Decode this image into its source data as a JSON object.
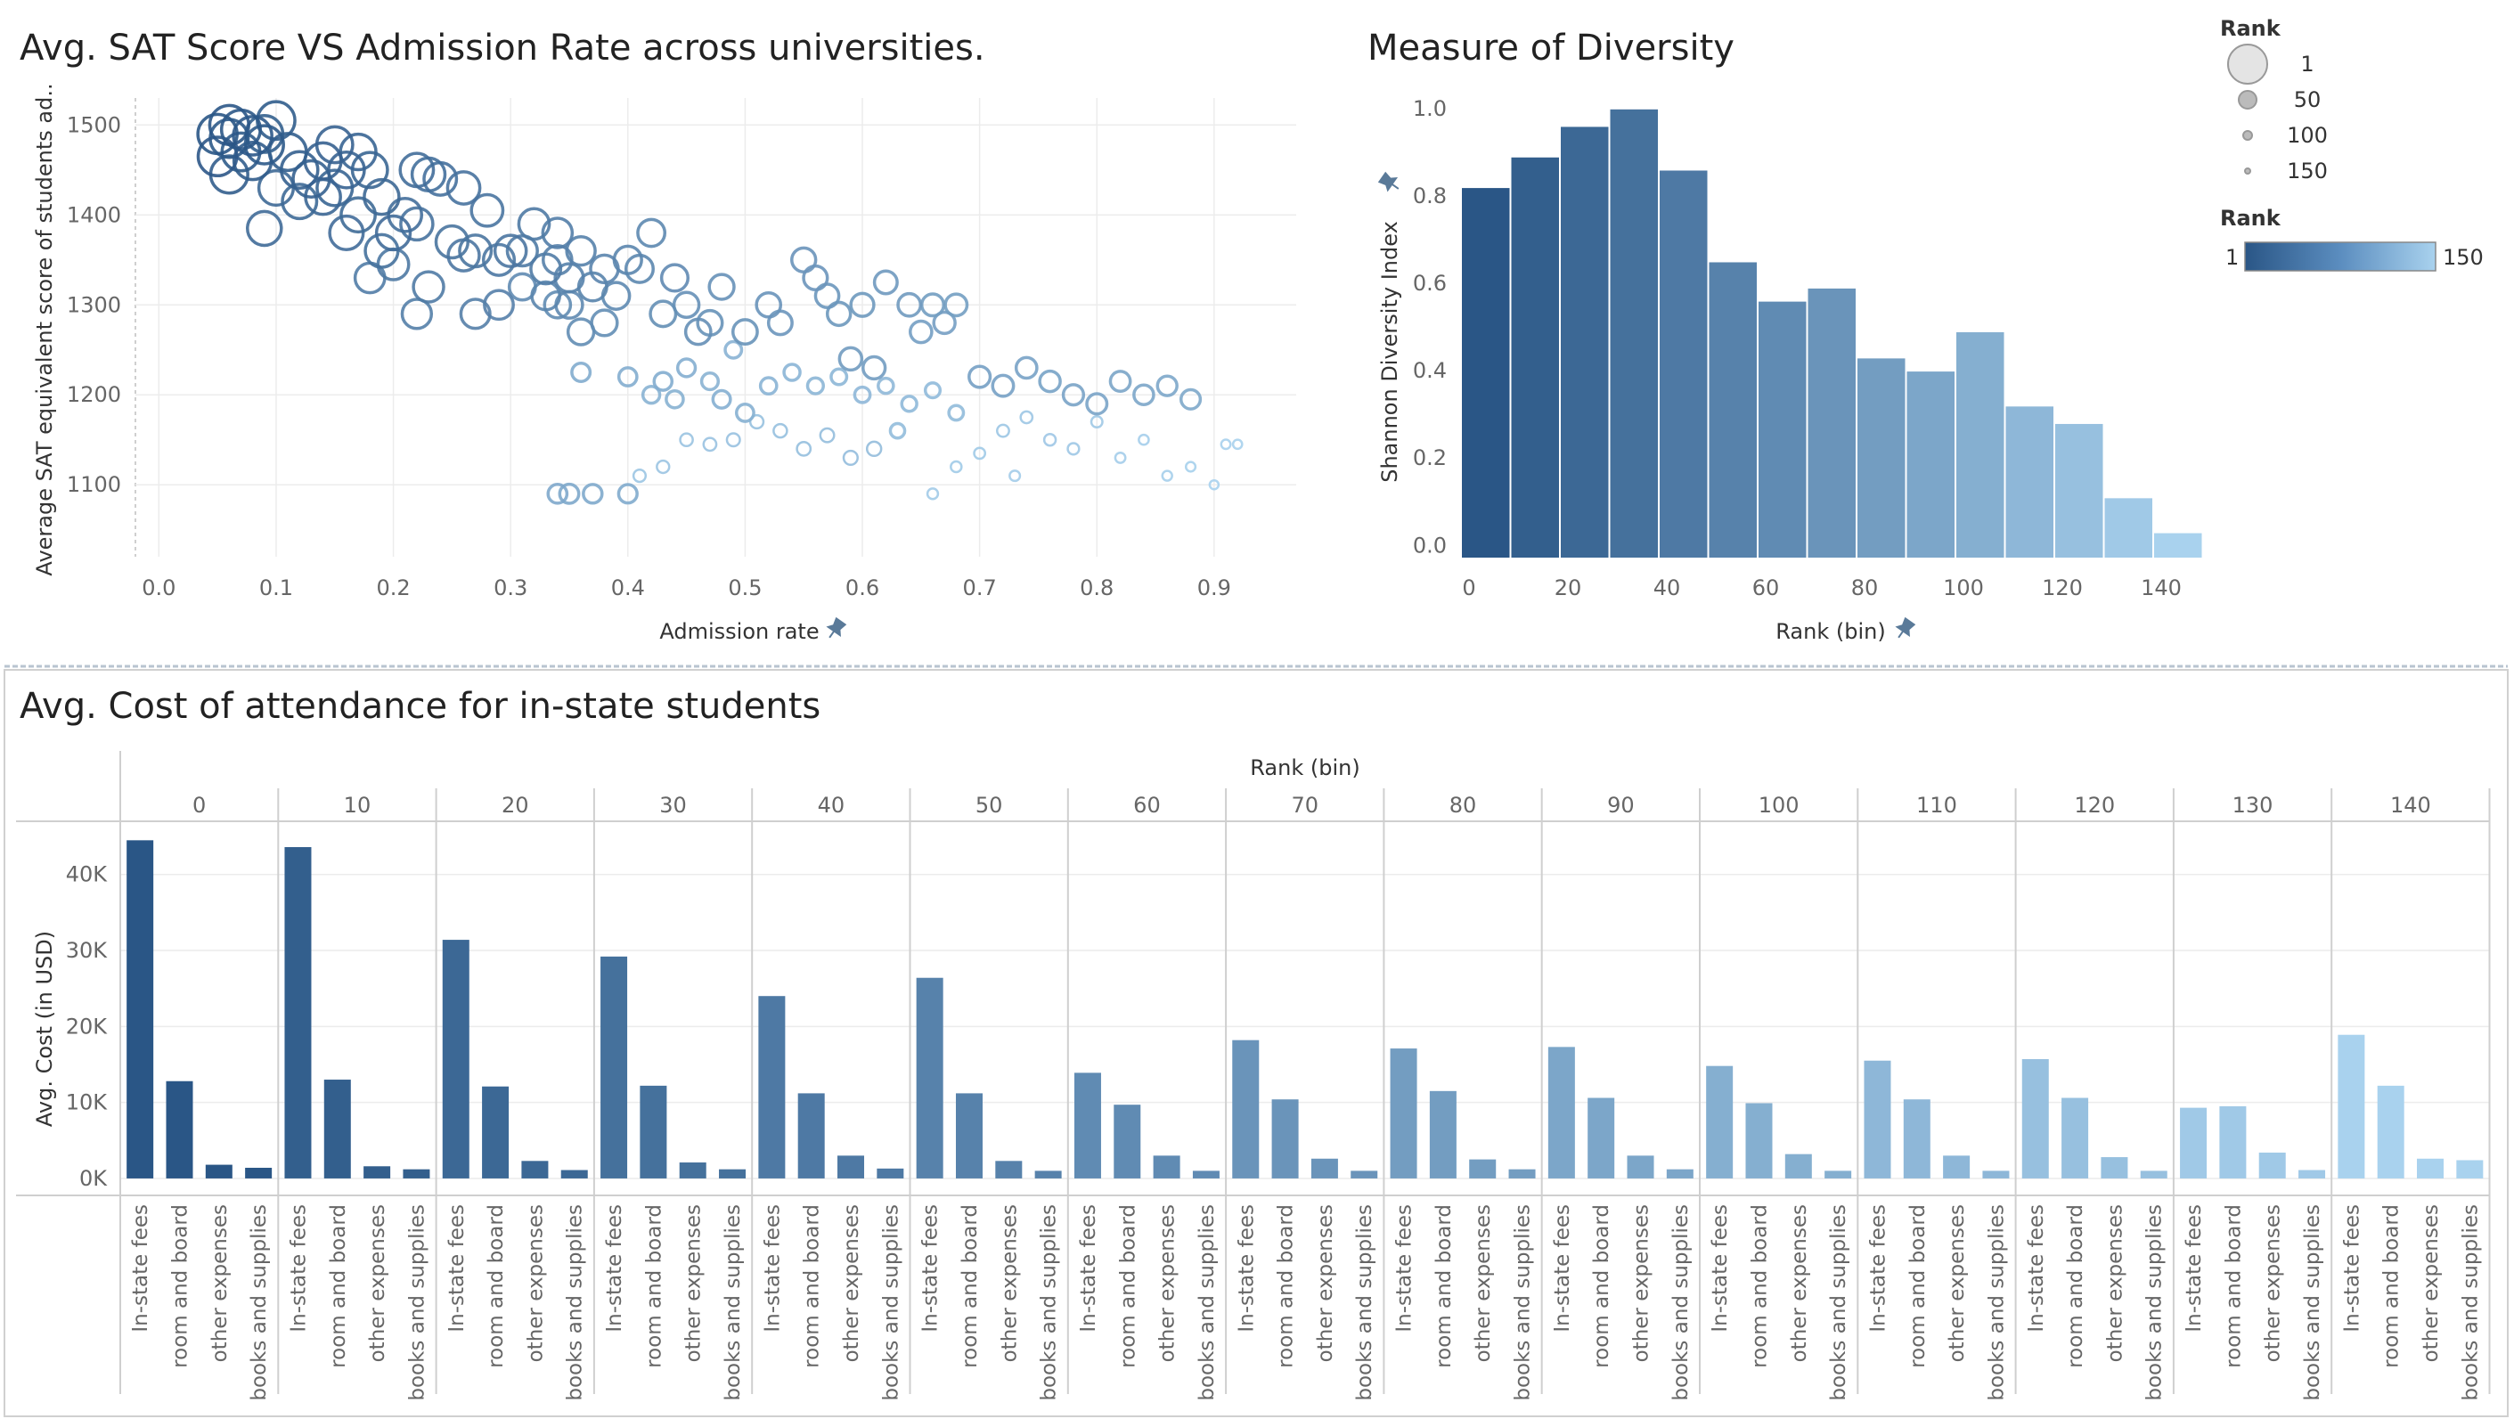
{
  "colors": {
    "dark": "#2a5686",
    "light": "#a9d2ee",
    "mid": "#4a78a8"
  },
  "legend": {
    "size_title": "Rank",
    "size_items": [
      {
        "label": "1",
        "r": 1
      },
      {
        "label": "50",
        "r": 50
      },
      {
        "label": "100",
        "r": 100
      },
      {
        "label": "150",
        "r": 150
      }
    ],
    "color_title": "Rank",
    "color_min_label": "1",
    "color_max_label": "150"
  },
  "chart_data": [
    {
      "type": "scatter",
      "title": "Avg. SAT Score VS Admission Rate across universities.",
      "xlabel": "Admission rate",
      "ylabel": "Average SAT equivalent score of students ad..",
      "xlim": [
        -0.02,
        0.97
      ],
      "ylim": [
        1020,
        1530
      ],
      "x_ticks": [
        "0.0",
        "0.1",
        "0.2",
        "0.3",
        "0.4",
        "0.5",
        "0.6",
        "0.7",
        "0.8",
        "0.9"
      ],
      "y_ticks": [
        "1100",
        "1200",
        "1300",
        "1400",
        "1500"
      ],
      "points": [
        [
          0.05,
          1490,
          1
        ],
        [
          0.06,
          1500,
          2
        ],
        [
          0.07,
          1495,
          3
        ],
        [
          0.05,
          1465,
          4
        ],
        [
          0.08,
          1488,
          5
        ],
        [
          0.09,
          1478,
          6
        ],
        [
          0.06,
          1485,
          7
        ],
        [
          0.07,
          1470,
          8
        ],
        [
          0.1,
          1505,
          9
        ],
        [
          0.08,
          1460,
          10
        ],
        [
          0.06,
          1445,
          11
        ],
        [
          0.11,
          1470,
          12
        ],
        [
          0.09,
          1490,
          13
        ],
        [
          0.12,
          1450,
          14
        ],
        [
          0.13,
          1440,
          15
        ],
        [
          0.14,
          1460,
          16
        ],
        [
          0.15,
          1478,
          17
        ],
        [
          0.16,
          1450,
          18
        ],
        [
          0.17,
          1470,
          19
        ],
        [
          0.15,
          1430,
          20
        ],
        [
          0.18,
          1450,
          21
        ],
        [
          0.14,
          1420,
          22
        ],
        [
          0.19,
          1420,
          23
        ],
        [
          0.1,
          1430,
          24
        ],
        [
          0.12,
          1415,
          25
        ],
        [
          0.17,
          1400,
          26
        ],
        [
          0.09,
          1385,
          27
        ],
        [
          0.2,
          1380,
          28
        ],
        [
          0.16,
          1380,
          29
        ],
        [
          0.22,
          1450,
          30
        ],
        [
          0.21,
          1400,
          31
        ],
        [
          0.23,
          1445,
          32
        ],
        [
          0.19,
          1360,
          33
        ],
        [
          0.24,
          1440,
          34
        ],
        [
          0.26,
          1430,
          35
        ],
        [
          0.22,
          1390,
          36
        ],
        [
          0.25,
          1370,
          37
        ],
        [
          0.27,
          1360,
          38
        ],
        [
          0.28,
          1405,
          39
        ],
        [
          0.3,
          1360,
          40
        ],
        [
          0.26,
          1355,
          41
        ],
        [
          0.29,
          1350,
          42
        ],
        [
          0.2,
          1345,
          43
        ],
        [
          0.32,
          1390,
          44
        ],
        [
          0.23,
          1320,
          45
        ],
        [
          0.31,
          1360,
          46
        ],
        [
          0.33,
          1340,
          47
        ],
        [
          0.18,
          1330,
          48
        ],
        [
          0.34,
          1380,
          49
        ],
        [
          0.22,
          1290,
          50
        ],
        [
          0.27,
          1290,
          51
        ],
        [
          0.29,
          1300,
          52
        ],
        [
          0.34,
          1350,
          53
        ],
        [
          0.36,
          1360,
          54
        ],
        [
          0.35,
          1330,
          55
        ],
        [
          0.37,
          1320,
          56
        ],
        [
          0.33,
          1310,
          57
        ],
        [
          0.38,
          1340,
          58
        ],
        [
          0.4,
          1350,
          59
        ],
        [
          0.41,
          1340,
          60
        ],
        [
          0.42,
          1380,
          61
        ],
        [
          0.39,
          1310,
          62
        ],
        [
          0.35,
          1300,
          63
        ],
        [
          0.44,
          1330,
          64
        ],
        [
          0.31,
          1320,
          65
        ],
        [
          0.34,
          1300,
          66
        ],
        [
          0.36,
          1270,
          67
        ],
        [
          0.38,
          1280,
          68
        ],
        [
          0.43,
          1290,
          69
        ],
        [
          0.46,
          1270,
          70
        ],
        [
          0.45,
          1300,
          71
        ],
        [
          0.48,
          1320,
          72
        ],
        [
          0.47,
          1280,
          73
        ],
        [
          0.5,
          1270,
          74
        ],
        [
          0.52,
          1300,
          75
        ],
        [
          0.55,
          1350,
          76
        ],
        [
          0.56,
          1330,
          77
        ],
        [
          0.53,
          1280,
          78
        ],
        [
          0.57,
          1310,
          79
        ],
        [
          0.58,
          1290,
          80
        ],
        [
          0.6,
          1300,
          81
        ],
        [
          0.62,
          1325,
          82
        ],
        [
          0.64,
          1300,
          83
        ],
        [
          0.59,
          1240,
          84
        ],
        [
          0.61,
          1230,
          85
        ],
        [
          0.66,
          1300,
          86
        ],
        [
          0.68,
          1300,
          87
        ],
        [
          0.65,
          1270,
          88
        ],
        [
          0.67,
          1280,
          89
        ],
        [
          0.7,
          1220,
          90
        ],
        [
          0.72,
          1210,
          91
        ],
        [
          0.74,
          1230,
          92
        ],
        [
          0.76,
          1215,
          93
        ],
        [
          0.78,
          1200,
          94
        ],
        [
          0.8,
          1190,
          95
        ],
        [
          0.82,
          1215,
          96
        ],
        [
          0.84,
          1200,
          97
        ],
        [
          0.86,
          1210,
          98
        ],
        [
          0.88,
          1195,
          99
        ],
        [
          0.35,
          1090,
          100
        ],
        [
          0.34,
          1090,
          101
        ],
        [
          0.37,
          1090,
          102
        ],
        [
          0.4,
          1090,
          103
        ],
        [
          0.36,
          1225,
          104
        ],
        [
          0.4,
          1220,
          105
        ],
        [
          0.43,
          1215,
          106
        ],
        [
          0.45,
          1230,
          107
        ],
        [
          0.48,
          1195,
          108
        ],
        [
          0.5,
          1180,
          109
        ],
        [
          0.44,
          1195,
          110
        ],
        [
          0.42,
          1200,
          111
        ],
        [
          0.47,
          1215,
          112
        ],
        [
          0.49,
          1250,
          113
        ],
        [
          0.52,
          1210,
          114
        ],
        [
          0.54,
          1225,
          115
        ],
        [
          0.56,
          1210,
          116
        ],
        [
          0.58,
          1220,
          117
        ],
        [
          0.6,
          1200,
          118
        ],
        [
          0.62,
          1210,
          119
        ],
        [
          0.64,
          1190,
          120
        ],
        [
          0.66,
          1205,
          121
        ],
        [
          0.68,
          1180,
          122
        ],
        [
          0.63,
          1160,
          123
        ],
        [
          0.61,
          1140,
          124
        ],
        [
          0.59,
          1130,
          125
        ],
        [
          0.57,
          1155,
          126
        ],
        [
          0.55,
          1140,
          127
        ],
        [
          0.53,
          1160,
          128
        ],
        [
          0.51,
          1170,
          129
        ],
        [
          0.49,
          1150,
          130
        ],
        [
          0.47,
          1145,
          131
        ],
        [
          0.45,
          1150,
          132
        ],
        [
          0.43,
          1120,
          133
        ],
        [
          0.41,
          1110,
          134
        ],
        [
          0.72,
          1160,
          135
        ],
        [
          0.74,
          1175,
          136
        ],
        [
          0.76,
          1150,
          137
        ],
        [
          0.78,
          1140,
          138
        ],
        [
          0.8,
          1170,
          139
        ],
        [
          0.7,
          1135,
          140
        ],
        [
          0.68,
          1120,
          141
        ],
        [
          0.66,
          1090,
          142
        ],
        [
          0.73,
          1110,
          143
        ],
        [
          0.82,
          1130,
          144
        ],
        [
          0.84,
          1150,
          145
        ],
        [
          0.86,
          1110,
          146
        ],
        [
          0.88,
          1120,
          147
        ],
        [
          0.91,
          1145,
          148
        ],
        [
          0.92,
          1145,
          149
        ],
        [
          0.9,
          1100,
          150
        ]
      ]
    },
    {
      "type": "bar",
      "title": "Measure of Diversity",
      "xlabel": "Rank (bin)",
      "ylabel": "Shannon Diversity Index",
      "ylim": [
        -0.03,
        1.02
      ],
      "x_ticks": [
        "0",
        "20",
        "40",
        "60",
        "80",
        "100",
        "120",
        "140"
      ],
      "y_ticks": [
        "0.0",
        "0.2",
        "0.4",
        "0.6",
        "0.8",
        "1.0"
      ],
      "bins": [
        0,
        10,
        20,
        30,
        40,
        50,
        60,
        70,
        80,
        90,
        100,
        110,
        120,
        130,
        140
      ],
      "values": [
        0.82,
        0.89,
        0.96,
        1.0,
        0.86,
        0.65,
        0.56,
        0.59,
        0.43,
        0.4,
        0.49,
        0.32,
        0.28,
        0.11,
        0.03
      ]
    },
    {
      "type": "bar",
      "title": "Avg. Cost of attendance for in-state students",
      "header": "Rank (bin)",
      "ylabel": "Avg. Cost (in USD)",
      "ylim": [
        -2000,
        47000
      ],
      "y_ticks": [
        "0K",
        "10K",
        "20K",
        "30K",
        "40K"
      ],
      "categories": [
        "In-state fees",
        "room and board",
        "other expenses",
        "books and supplies"
      ],
      "groups": [
        "0",
        "10",
        "20",
        "30",
        "40",
        "50",
        "60",
        "70",
        "80",
        "90",
        "100",
        "110",
        "120",
        "130",
        "140"
      ],
      "values": [
        [
          44500,
          12800,
          1800,
          1400
        ],
        [
          43600,
          13000,
          1600,
          1200
        ],
        [
          31400,
          12100,
          2300,
          1100
        ],
        [
          29200,
          12200,
          2100,
          1200
        ],
        [
          24000,
          11200,
          3000,
          1300
        ],
        [
          26400,
          11200,
          2300,
          1000
        ],
        [
          13900,
          9700,
          3000,
          1000
        ],
        [
          18200,
          10400,
          2600,
          1000
        ],
        [
          17100,
          11500,
          2500,
          1200
        ],
        [
          17300,
          10600,
          3000,
          1200
        ],
        [
          14800,
          9900,
          3200,
          1000
        ],
        [
          15500,
          10400,
          3000,
          1000
        ],
        [
          15700,
          10600,
          2800,
          1000
        ],
        [
          9300,
          9500,
          3400,
          1100
        ],
        [
          18900,
          12200,
          2600,
          2400
        ]
      ]
    }
  ]
}
